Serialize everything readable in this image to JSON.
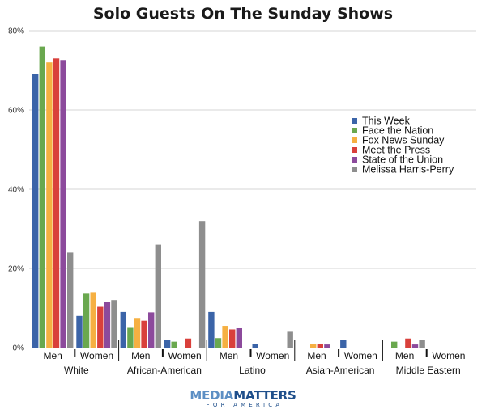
{
  "title": "Solo Guests On The Sunday Shows",
  "chart_data": {
    "type": "bar",
    "title": "Solo Guests On The Sunday Shows",
    "xlabel": "",
    "ylabel": "",
    "ylim": [
      0,
      80
    ],
    "y_ticks": [
      "0%",
      "20%",
      "40%",
      "60%",
      "80%"
    ],
    "y_tick_values": [
      0,
      20,
      40,
      60,
      80
    ],
    "grid": true,
    "legend_position": "right",
    "groups": [
      "White",
      "African-American",
      "Latino",
      "Asian-American",
      "Middle Eastern"
    ],
    "categories": [
      "Men",
      "Women",
      "Men",
      "Women",
      "Men",
      "Women",
      "Men",
      "Women",
      "Men",
      "Women"
    ],
    "series": [
      {
        "name": "This Week",
        "color": "#3b64a8",
        "values": [
          69,
          8,
          9,
          2,
          9,
          1,
          0,
          2,
          0,
          0
        ]
      },
      {
        "name": "Face the Nation",
        "color": "#6aa84f",
        "values": [
          76,
          13.6,
          5,
          1.5,
          2.4,
          0,
          0,
          0,
          1.5,
          0
        ]
      },
      {
        "name": "Fox News Sunday",
        "color": "#f6b042",
        "values": [
          72,
          14,
          7.5,
          0,
          5.5,
          0,
          1,
          0,
          0,
          0
        ]
      },
      {
        "name": "Meet the Press",
        "color": "#d9403b",
        "values": [
          73,
          10.3,
          6.8,
          2.3,
          4.6,
          0,
          1,
          0,
          2.3,
          0
        ]
      },
      {
        "name": "State of the Union",
        "color": "#8c4a9c",
        "values": [
          72.6,
          11.6,
          8.9,
          0,
          4.9,
          0,
          0.8,
          0,
          0.8,
          0
        ]
      },
      {
        "name": "Melissa Harris-Perry",
        "color": "#8e8e8e",
        "values": [
          24,
          12,
          26,
          32,
          0,
          4,
          0,
          0,
          2,
          0
        ]
      }
    ]
  },
  "logo": {
    "part1": "MEDIA",
    "part2": "MATTERS",
    "sub": "FOR AMERICA"
  }
}
